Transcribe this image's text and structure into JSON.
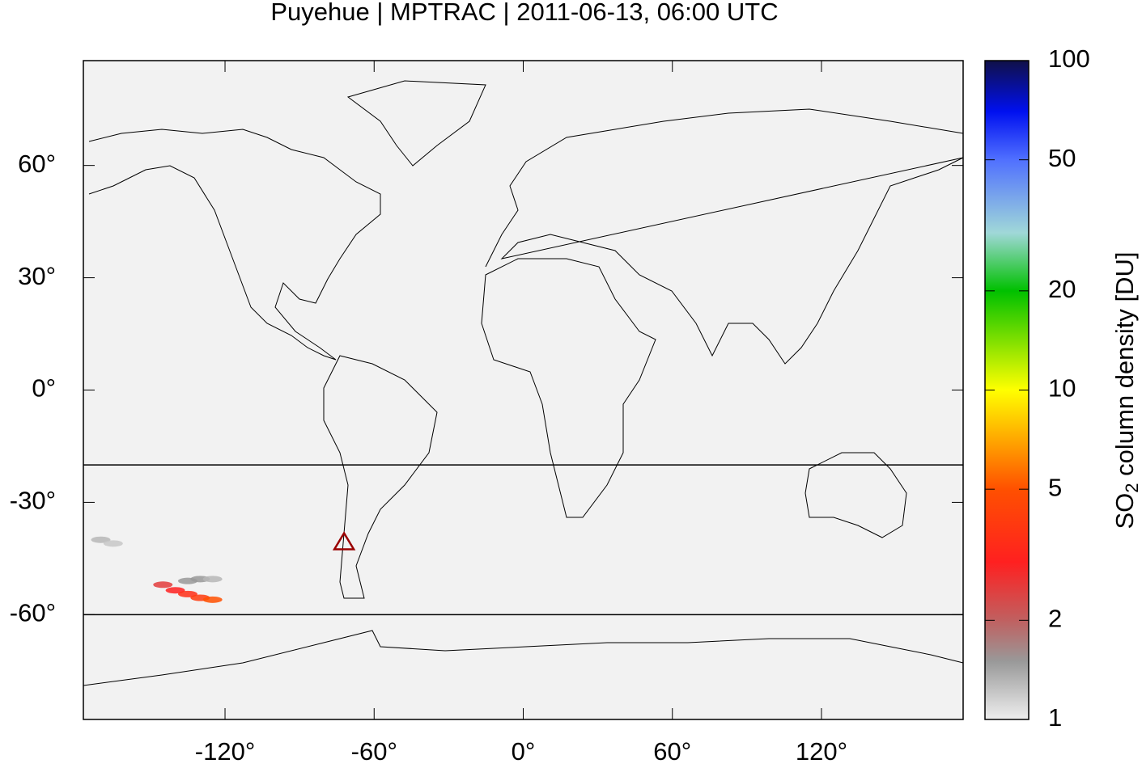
{
  "chart_data": {
    "type": "map",
    "title": "Puyehue | MPTRAC | 2011-06-13, 06:00 UTC",
    "xlim": [
      -177,
      177
    ],
    "ylim": [
      -88,
      88
    ],
    "xticks": [
      {
        "value": -120,
        "label": "-120°"
      },
      {
        "value": -60,
        "label": "-60°"
      },
      {
        "value": 0,
        "label": "0°"
      },
      {
        "value": 60,
        "label": "60°"
      },
      {
        "value": 120,
        "label": "120°"
      }
    ],
    "yticks": [
      {
        "value": 60,
        "label": "60°"
      },
      {
        "value": 30,
        "label": "30°"
      },
      {
        "value": 0,
        "label": "0°"
      },
      {
        "value": -30,
        "label": "-30°"
      },
      {
        "value": -60,
        "label": "-60°"
      }
    ],
    "hlines": [
      -20,
      -60
    ],
    "volcano": {
      "lon": -72.1,
      "lat": -40.6,
      "color": "#990000"
    },
    "plume": {
      "x": [
        -145,
        -140,
        -135,
        -130,
        -125,
        -135,
        -130,
        -125,
        -170,
        -165
      ],
      "y": [
        -52,
        -53.5,
        -54.5,
        -55.5,
        -56,
        -51,
        -50.5,
        -50.5,
        -40,
        -41
      ],
      "values": [
        2.5,
        3,
        3.5,
        4,
        5,
        1.5,
        1.5,
        1.3,
        1.3,
        1.2
      ]
    },
    "colorbar": {
      "log": true,
      "lim": [
        1,
        100
      ],
      "ticks": [
        1,
        2,
        5,
        10,
        20,
        50,
        100
      ],
      "label": {
        "main": "SO",
        "sub": "2",
        "rest": " column density [DU]"
      },
      "stops": [
        {
          "value": 1,
          "color": "#eeeeee"
        },
        {
          "value": 1.5,
          "color": "#999999"
        },
        {
          "value": 2,
          "color": "#c06060"
        },
        {
          "value": 3,
          "color": "#ff2020"
        },
        {
          "value": 5,
          "color": "#ff5000"
        },
        {
          "value": 10,
          "color": "#ffff00"
        },
        {
          "value": 20,
          "color": "#00c000"
        },
        {
          "value": 30,
          "color": "#a0d8d8"
        },
        {
          "value": 50,
          "color": "#5070ff"
        },
        {
          "value": 70,
          "color": "#0010f0"
        },
        {
          "value": 100,
          "color": "#101048"
        }
      ]
    }
  }
}
